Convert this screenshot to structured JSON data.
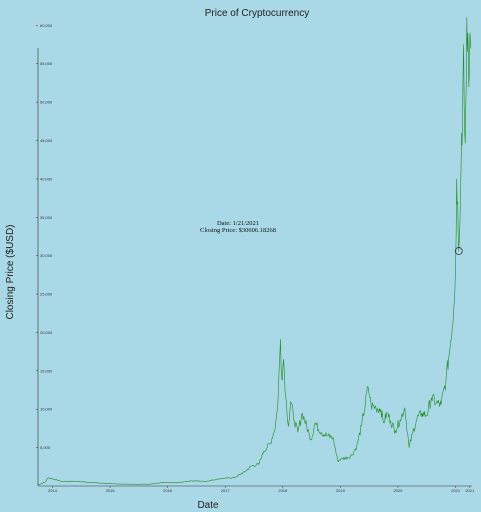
{
  "chart_data": {
    "type": "line",
    "title": "Price of Cryptocurrency",
    "xlabel": "Date",
    "ylabel": "Closing Price ($USD)",
    "ylim": [
      0,
      62000
    ],
    "x_ticks": [
      "2014",
      "2015",
      "2016",
      "2017",
      "2018",
      "2019",
      "2020",
      "2021",
      "2021"
    ],
    "y_ticks": [
      "5,000",
      "10,000",
      "15,000",
      "20,000",
      "25,000",
      "30,000",
      "35,000",
      "40,000",
      "45,000",
      "50,000",
      "55,000",
      "60,000"
    ],
    "grid": false,
    "series_color": "#228b22",
    "series": [
      {
        "x": [
          "2013-10-01",
          "2013-11-15",
          "2013-12-05",
          "2014-01-15",
          "2014-03-01",
          "2014-06-01",
          "2014-09-01",
          "2014-12-01",
          "2015-03-01",
          "2015-06-01",
          "2015-09-01",
          "2015-12-01",
          "2016-03-01",
          "2016-06-01",
          "2016-09-01",
          "2016-12-01",
          "2017-03-01",
          "2017-05-01",
          "2017-06-15",
          "2017-08-01",
          "2017-09-01",
          "2017-10-15",
          "2017-11-15",
          "2017-12-01",
          "2017-12-17",
          "2017-12-25",
          "2018-01-06",
          "2018-01-20",
          "2018-02-06",
          "2018-02-20",
          "2018-03-15",
          "2018-04-06",
          "2018-05-05",
          "2018-06-29",
          "2018-07-24",
          "2018-09-01",
          "2018-10-15",
          "2018-11-15",
          "2018-12-15",
          "2019-01-15",
          "2019-02-15",
          "2019-03-15",
          "2019-04-15",
          "2019-05-15",
          "2019-06-26",
          "2019-07-15",
          "2019-08-15",
          "2019-09-15",
          "2019-10-01",
          "2019-10-26",
          "2019-11-15",
          "2019-12-15",
          "2020-01-15",
          "2020-02-14",
          "2020-03-12",
          "2020-04-01",
          "2020-05-01",
          "2020-06-01",
          "2020-07-01",
          "2020-08-01",
          "2020-09-01",
          "2020-10-01",
          "2020-11-01",
          "2020-12-01",
          "2020-12-20",
          "2021-01-01",
          "2021-01-08",
          "2021-01-14",
          "2021-01-21",
          "2021-01-28",
          "2021-02-08",
          "2021-02-14",
          "2021-02-21",
          "2021-02-28",
          "2021-03-06",
          "2021-03-13",
          "2021-03-20",
          "2021-03-26",
          "2021-04-02",
          "2021-04-08"
        ],
        "y": [
          150,
          500,
          1100,
          850,
          600,
          620,
          450,
          350,
          250,
          240,
          230,
          430,
          420,
          680,
          610,
          960,
          1100,
          1800,
          2600,
          2800,
          4500,
          5600,
          7800,
          11000,
          19100,
          14000,
          16500,
          11500,
          7800,
          11000,
          8500,
          7000,
          9500,
          6000,
          8200,
          7000,
          6500,
          6300,
          3300,
          3600,
          3700,
          4000,
          5200,
          7800,
          12900,
          10500,
          10200,
          10000,
          8300,
          9500,
          8500,
          7200,
          8600,
          10200,
          5000,
          6700,
          8800,
          9500,
          9200,
          11500,
          10800,
          10600,
          13800,
          19000,
          23000,
          29000,
          40000,
          37000,
          30606.18,
          34000,
          46000,
          48000,
          57500,
          46000,
          49000,
          61000,
          59000,
          52000,
          59000,
          57000
        ]
      }
    ],
    "annotation": {
      "date_text": "Date: 1/21/2021",
      "price_text": "Closing Price: $30606.18268",
      "date": "2021-01-21",
      "value": 30606.18
    }
  }
}
